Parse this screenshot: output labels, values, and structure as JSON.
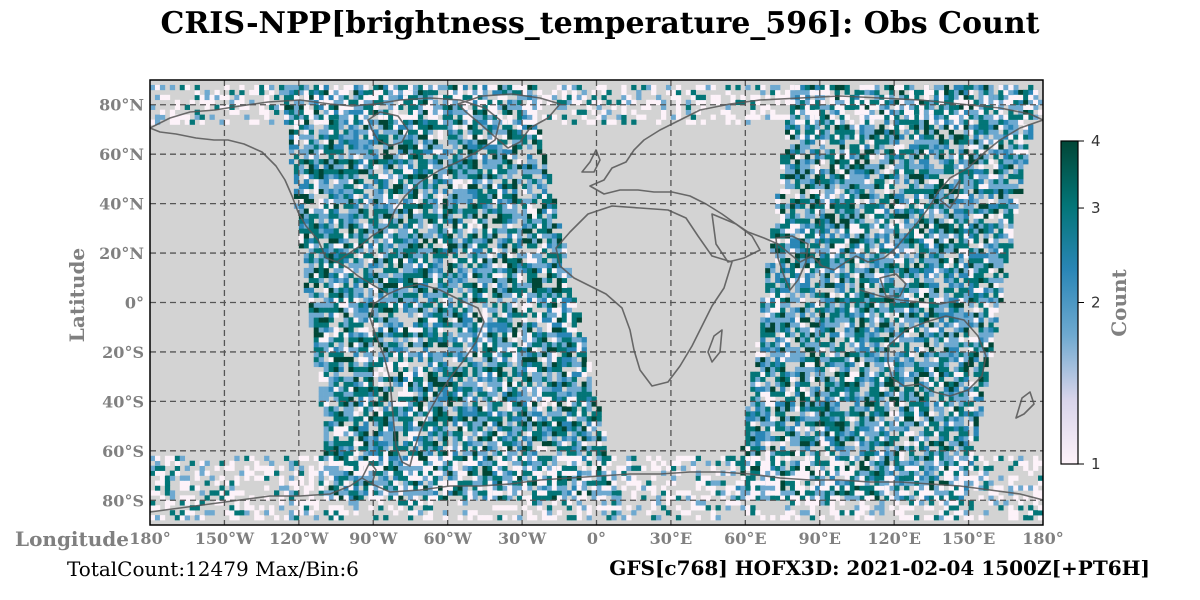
{
  "title": "CRIS-NPP[brightness_temperature_596]: Obs Count",
  "footer": {
    "left": "TotalCount:12479 Max/Bin:6",
    "right": "GFS[c768] HOFX3D: 2021-02-04 1500Z[+PT6H]"
  },
  "colors": {
    "ocean_land_background": "#d3d3d3",
    "grid": "#555555",
    "coastline": "#555555",
    "tick_label": "#808080",
    "colormap": [
      "#fdf2f9",
      "#d8d4ea",
      "#6ea9d0",
      "#2a86b6",
      "#037577",
      "#014636"
    ]
  },
  "chart_data": {
    "type": "heatmap",
    "title": "CRIS-NPP[brightness_temperature_596]: Obs Count",
    "xlabel": "Longitude",
    "ylabel": "Latitude",
    "xlim": [
      -180,
      180
    ],
    "ylim": [
      -90,
      90
    ],
    "grid": true,
    "x_ticks": [
      -180,
      -150,
      -120,
      -90,
      -60,
      -30,
      0,
      30,
      60,
      90,
      120,
      150,
      180
    ],
    "x_tick_labels": [
      "180°",
      "150°W",
      "120°W",
      "90°W",
      "60°W",
      "30°W",
      "0°",
      "30°E",
      "60°E",
      "90°E",
      "120°E",
      "150°E",
      "180°"
    ],
    "y_ticks": [
      80,
      60,
      40,
      20,
      0,
      -20,
      -40,
      -60,
      -80
    ],
    "y_tick_labels": [
      "80°N",
      "60°N",
      "40°N",
      "20°N",
      "0°",
      "20°S",
      "40°S",
      "60°S",
      "80°S"
    ],
    "bin_size_deg": 2,
    "swaths": [
      {
        "lat_range": [
          -80,
          88
        ],
        "lon_west_at_south": -108,
        "lon_west_at_north": -128,
        "lon_east_at_south": 8,
        "lon_east_at_north": -28,
        "density": "high"
      },
      {
        "lat_range": [
          -80,
          88
        ],
        "lon_west_at_south": 55,
        "lon_west_at_north": 78,
        "lon_east_at_south": 148,
        "lon_east_at_north": 178,
        "density": "high"
      },
      {
        "lat_range": [
          -88,
          -62
        ],
        "lon_west_at_south": -180,
        "lon_west_at_north": -180,
        "lon_east_at_south": 180,
        "lon_east_at_north": 180,
        "density": "sparse"
      },
      {
        "lat_range": [
          72,
          88
        ],
        "lon_west_at_south": -180,
        "lon_west_at_north": -180,
        "lon_east_at_south": 180,
        "lon_east_at_north": 180,
        "density": "sparse"
      }
    ],
    "colorbar": {
      "label": "Count",
      "scale": "log",
      "range": [
        1,
        4
      ],
      "ticks": [
        1,
        2,
        3,
        4
      ],
      "tick_labels": [
        "1",
        "2",
        "3",
        "4"
      ]
    },
    "total_count": 12479,
    "max_per_bin": 6
  }
}
